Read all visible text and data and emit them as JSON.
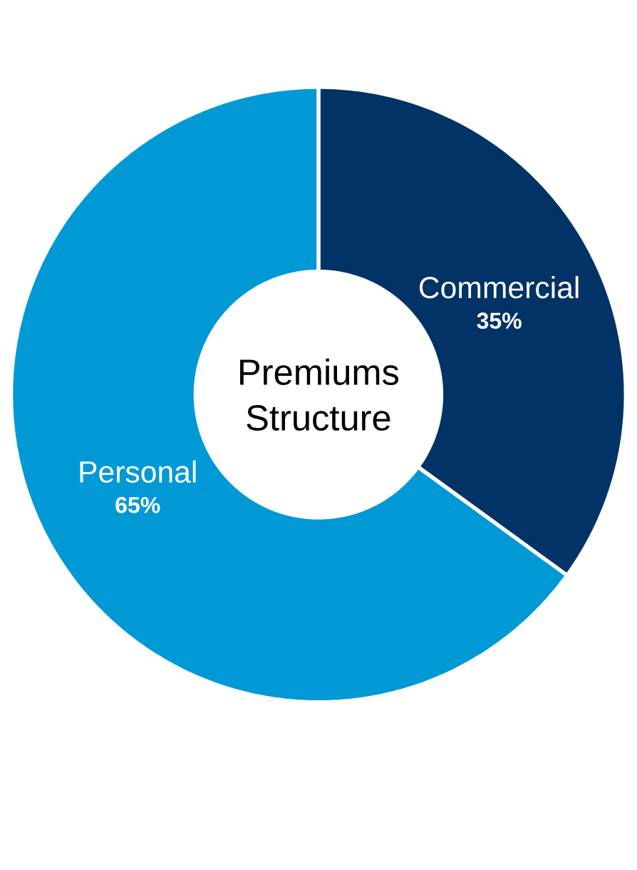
{
  "chart_data": {
    "type": "donut",
    "title": "Premiums Structure",
    "categories": [
      "Commercial",
      "Personal"
    ],
    "values": [
      35,
      65
    ],
    "colors": [
      "#023366",
      "#0099d5"
    ],
    "value_labels": [
      "35%",
      "65%"
    ]
  }
}
